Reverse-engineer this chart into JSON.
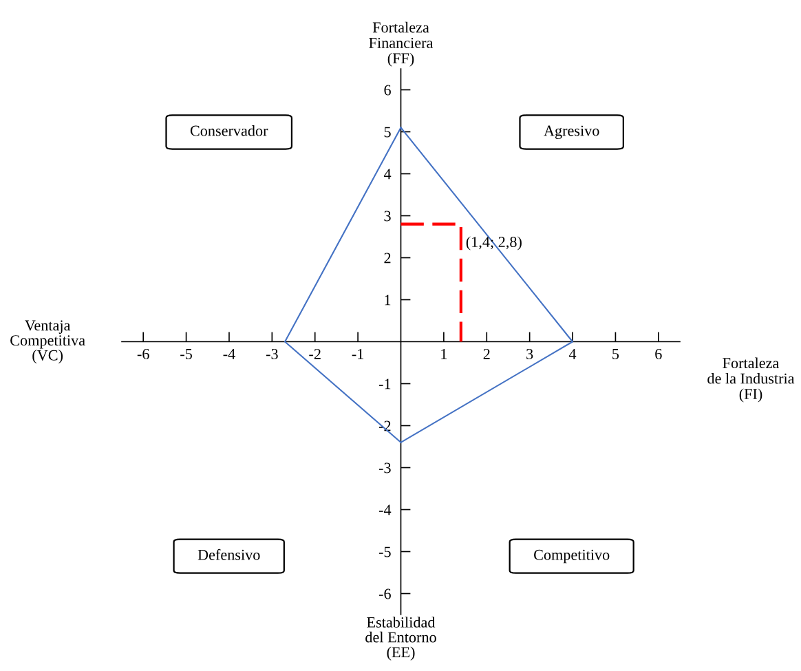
{
  "chart_data": {
    "type": "line",
    "xlabel": "Fortaleza\nde la Industria\n(FI)",
    "ylabel": "Fortaleza\nFinanciera\n(FF)",
    "xlim": [
      -6.5,
      6.5
    ],
    "ylim": [
      -6.5,
      6.5
    ],
    "xticks": [
      -6,
      -5,
      -4,
      -3,
      -2,
      -1,
      1,
      2,
      3,
      4,
      5,
      6
    ],
    "yticks": [
      -6,
      -5,
      -4,
      -3,
      -2,
      -1,
      1,
      2,
      3,
      4,
      5,
      6
    ],
    "grid": false,
    "line_style": "solid",
    "series": [
      {
        "color": "#4472c4",
        "x": [
          0,
          4,
          0
        ],
        "values": [
          5.1,
          0,
          -2.4
        ]
      },
      {
        "color": "#4472c4",
        "x": [
          0,
          -2.7,
          0
        ],
        "values": [
          5.1,
          0,
          -2.4
        ]
      },
      {
        "color": "#ff0000",
        "line_style": "dashed",
        "x": [
          0,
          1.4,
          1.4
        ],
        "values": [
          2.8,
          2.8,
          0
        ]
      }
    ],
    "annotations": [
      "Conservador",
      "Agresivo",
      "Defensivo",
      "Competitivo",
      "Ventaja\nCompetitiva\n(VC)",
      "Estabilidad\ndel Entorno\n(EE)",
      {
        "text": "(1,4; 2,8)",
        "x": 1.4,
        "y": 2.8
      }
    ]
  }
}
